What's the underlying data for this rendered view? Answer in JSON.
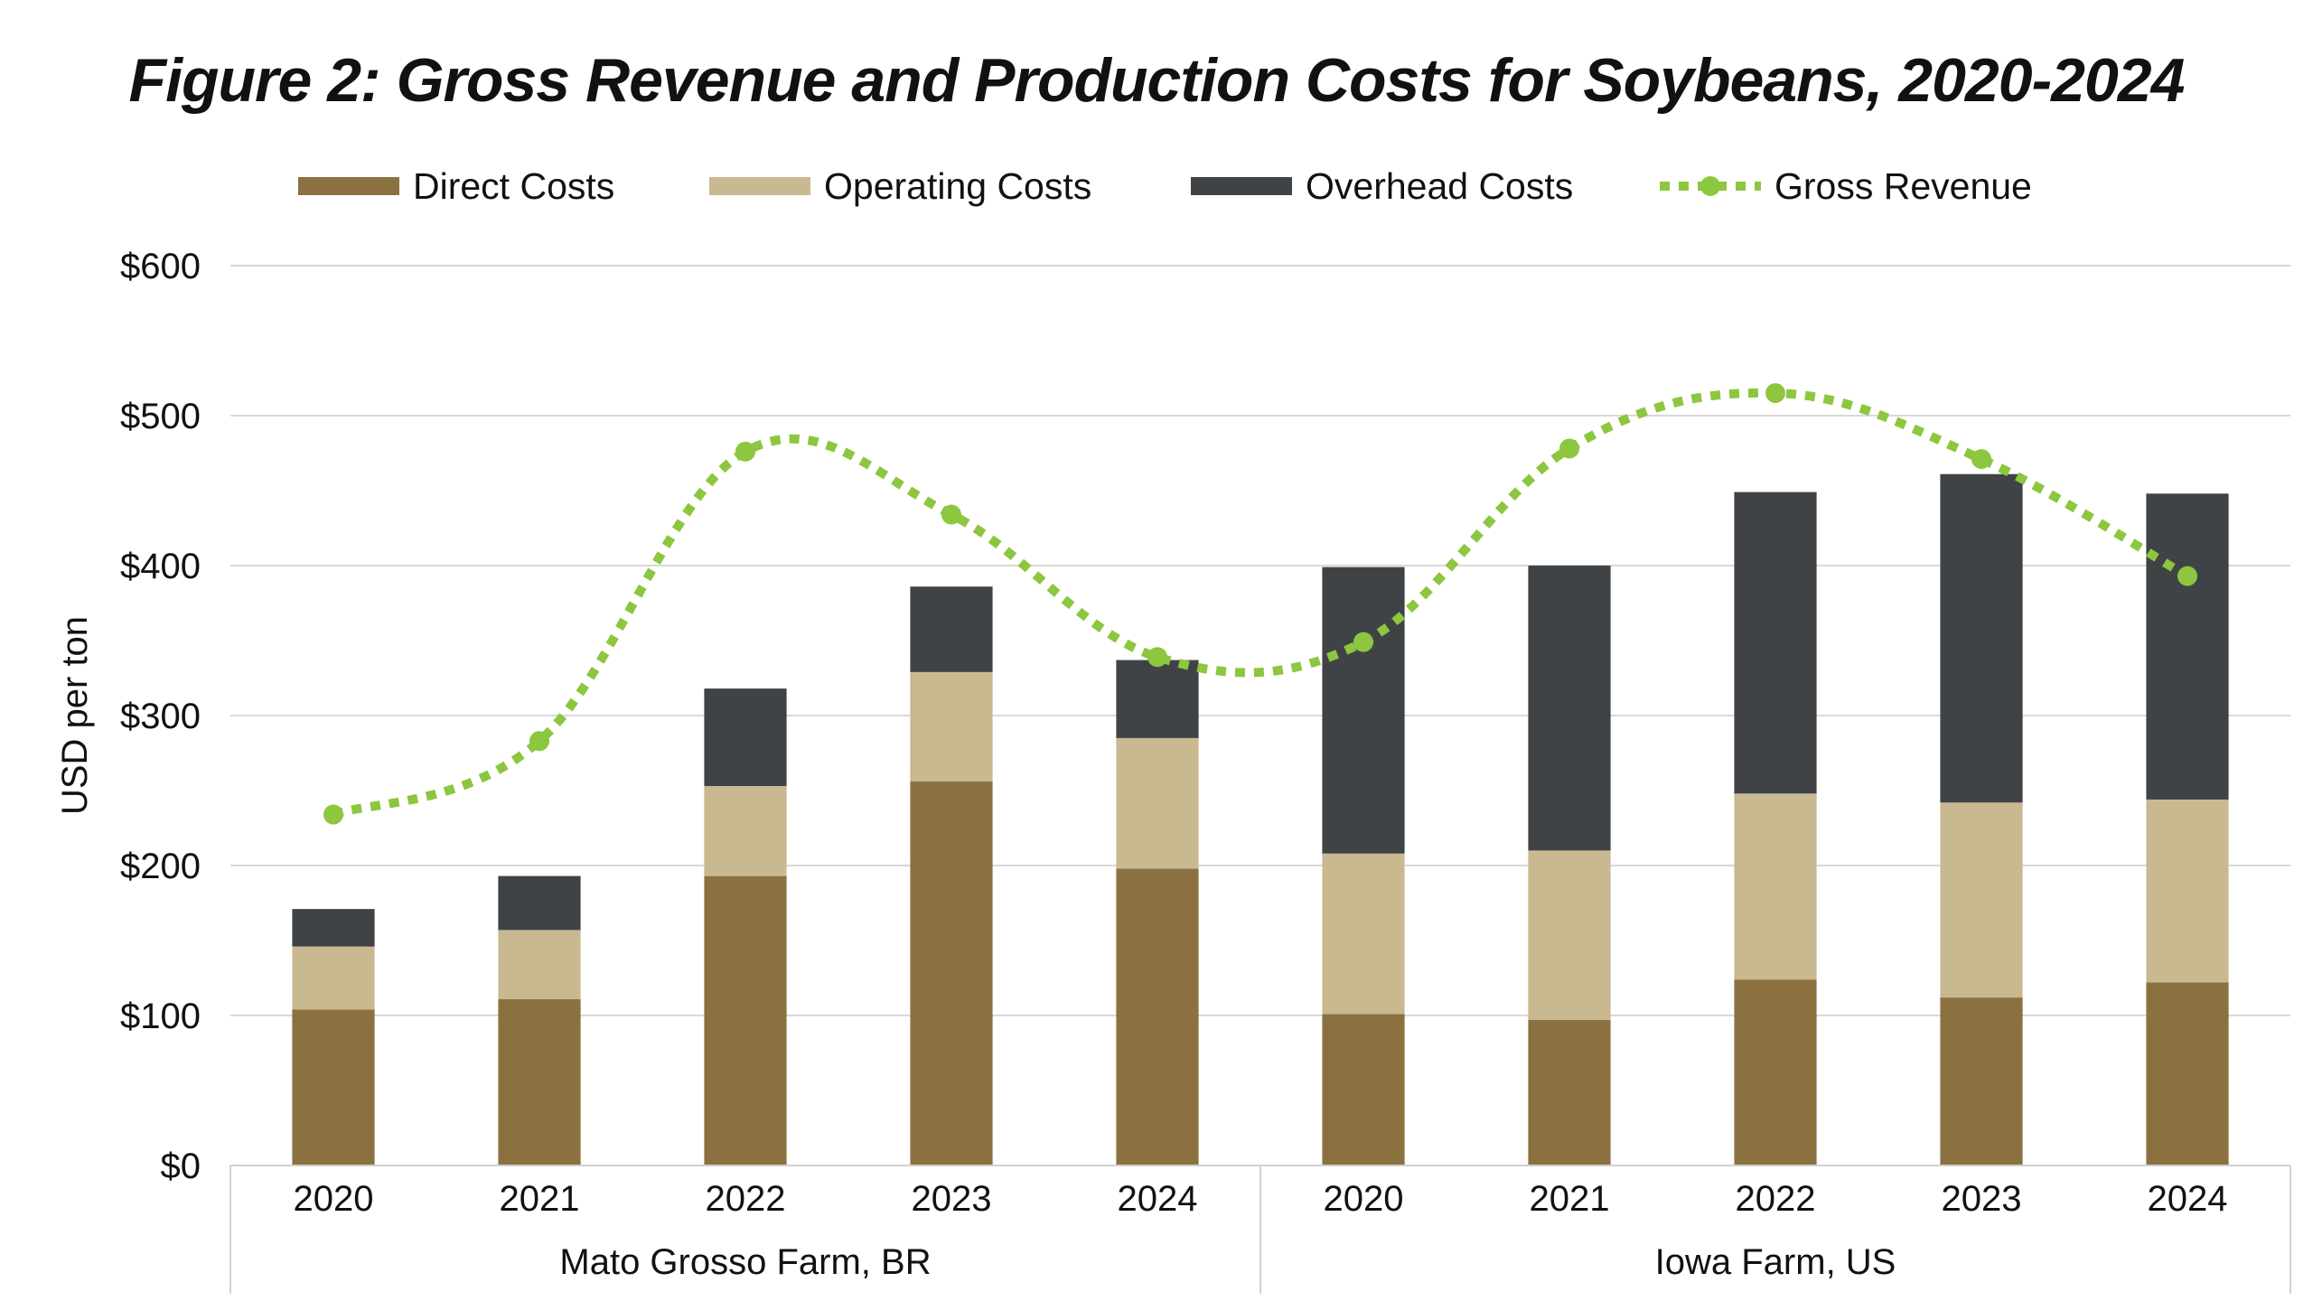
{
  "chart_data": {
    "type": "bar",
    "stacked": true,
    "title": "Figure 2:  Gross Revenue and Production Costs for Soybeans, 2020-2024",
    "ylabel": "USD per ton",
    "xlabel": "",
    "ylim": [
      0,
      600
    ],
    "yticks": [
      0,
      100,
      200,
      300,
      400,
      500,
      600
    ],
    "ytick_format": "$",
    "grid": true,
    "legend_position": "top",
    "groups": [
      {
        "name": "Mato Grosso Farm, BR",
        "categories": [
          "2020",
          "2021",
          "2022",
          "2023",
          "2024"
        ]
      },
      {
        "name": "Iowa Farm, US",
        "categories": [
          "2020",
          "2021",
          "2022",
          "2023",
          "2024"
        ]
      }
    ],
    "series": [
      {
        "name": "Direct Costs",
        "kind": "bar",
        "color": "#8b7140",
        "values": [
          104,
          111,
          193,
          256,
          198,
          101,
          97,
          124,
          112,
          122
        ]
      },
      {
        "name": "Operating Costs",
        "kind": "bar",
        "color": "#c8b990",
        "values": [
          42,
          46,
          60,
          73,
          87,
          107,
          113,
          124,
          130,
          122
        ]
      },
      {
        "name": "Overhead Costs",
        "kind": "bar",
        "color": "#404346",
        "values": [
          25,
          36,
          65,
          57,
          52,
          191,
          190,
          201,
          219,
          204
        ]
      },
      {
        "name": "Gross Revenue",
        "kind": "line",
        "color": "#8dc63f",
        "values": [
          234,
          283,
          476,
          434,
          339,
          349,
          478,
          515,
          471,
          393
        ]
      }
    ]
  }
}
